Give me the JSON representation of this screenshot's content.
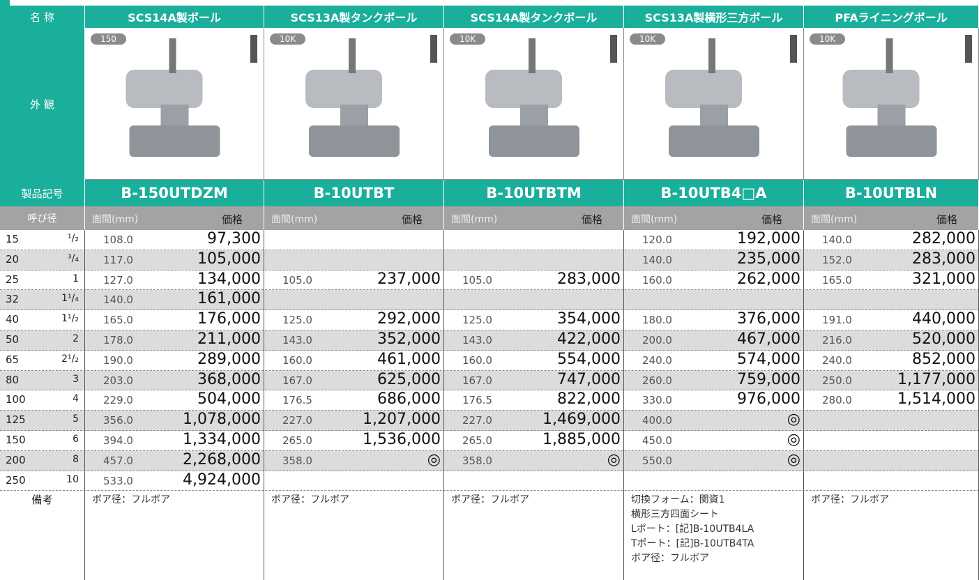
{
  "header": {
    "label": "名 称",
    "products": [
      "SCS14A製ボール",
      "SCS13A製タンクボール",
      "SCS14A製タンクボール",
      "SCS13A製横形三方ボール",
      "PFAライニングボール"
    ]
  },
  "appearance": {
    "label": "外 観",
    "badges": [
      "150",
      "10K",
      "10K",
      "10K",
      "10K"
    ]
  },
  "codes": {
    "label": "製品記号",
    "values": [
      "B-150UTDZM",
      "B-10UTBT",
      "B-10UTBTM",
      "B-10UTB4□A",
      "B-10UTBLN"
    ]
  },
  "subheader": {
    "label": "呼び径",
    "length": "面間(mm)",
    "price": "価格"
  },
  "rows": [
    {
      "size": "15",
      "inch": "¹/₂",
      "cells": [
        [
          "108.0",
          "97,300"
        ],
        null,
        null,
        [
          "120.0",
          "192,000"
        ],
        [
          "140.0",
          "282,000"
        ]
      ]
    },
    {
      "size": "20",
      "inch": "³/₄",
      "cells": [
        [
          "117.0",
          "105,000"
        ],
        null,
        null,
        [
          "140.0",
          "235,000"
        ],
        [
          "152.0",
          "283,000"
        ]
      ]
    },
    {
      "size": "25",
      "inch": "1",
      "cells": [
        [
          "127.0",
          "134,000"
        ],
        [
          "105.0",
          "237,000"
        ],
        [
          "105.0",
          "283,000"
        ],
        [
          "160.0",
          "262,000"
        ],
        [
          "165.0",
          "321,000"
        ]
      ]
    },
    {
      "size": "32",
      "inch": "1¹/₄",
      "cells": [
        [
          "140.0",
          "161,000"
        ],
        null,
        null,
        null,
        null
      ]
    },
    {
      "size": "40",
      "inch": "1¹/₂",
      "cells": [
        [
          "165.0",
          "176,000"
        ],
        [
          "125.0",
          "292,000"
        ],
        [
          "125.0",
          "354,000"
        ],
        [
          "180.0",
          "376,000"
        ],
        [
          "191.0",
          "440,000"
        ]
      ]
    },
    {
      "size": "50",
      "inch": "2",
      "cells": [
        [
          "178.0",
          "211,000"
        ],
        [
          "143.0",
          "352,000"
        ],
        [
          "143.0",
          "422,000"
        ],
        [
          "200.0",
          "467,000"
        ],
        [
          "216.0",
          "520,000"
        ]
      ]
    },
    {
      "size": "65",
      "inch": "2¹/₂",
      "cells": [
        [
          "190.0",
          "289,000"
        ],
        [
          "160.0",
          "461,000"
        ],
        [
          "160.0",
          "554,000"
        ],
        [
          "240.0",
          "574,000"
        ],
        [
          "240.0",
          "852,000"
        ]
      ]
    },
    {
      "size": "80",
      "inch": "3",
      "cells": [
        [
          "203.0",
          "368,000"
        ],
        [
          "167.0",
          "625,000"
        ],
        [
          "167.0",
          "747,000"
        ],
        [
          "260.0",
          "759,000"
        ],
        [
          "250.0",
          "1,177,000"
        ]
      ]
    },
    {
      "size": "100",
      "inch": "4",
      "cells": [
        [
          "229.0",
          "504,000"
        ],
        [
          "176.5",
          "686,000"
        ],
        [
          "176.5",
          "822,000"
        ],
        [
          "330.0",
          "976,000"
        ],
        [
          "280.0",
          "1,514,000"
        ]
      ]
    },
    {
      "size": "125",
      "inch": "5",
      "cells": [
        [
          "356.0",
          "1,078,000"
        ],
        [
          "227.0",
          "1,207,000"
        ],
        [
          "227.0",
          "1,469,000"
        ],
        [
          "400.0",
          "◎"
        ],
        null
      ]
    },
    {
      "size": "150",
      "inch": "6",
      "cells": [
        [
          "394.0",
          "1,334,000"
        ],
        [
          "265.0",
          "1,536,000"
        ],
        [
          "265.0",
          "1,885,000"
        ],
        [
          "450.0",
          "◎"
        ],
        null
      ]
    },
    {
      "size": "200",
      "inch": "8",
      "cells": [
        [
          "457.0",
          "2,268,000"
        ],
        [
          "358.0",
          "◎"
        ],
        [
          "358.0",
          "◎"
        ],
        [
          "550.0",
          "◎"
        ],
        null
      ]
    },
    {
      "size": "250",
      "inch": "10",
      "cells": [
        [
          "533.0",
          "4,924,000"
        ],
        null,
        null,
        null,
        null
      ]
    }
  ],
  "remarks": {
    "label": "備考",
    "values": [
      [
        "ボア径：フルボア"
      ],
      [
        "ボア径：フルボア"
      ],
      [
        "ボア径：フルボア"
      ],
      [
        "切換フォーム：関資1",
        "横形三方四面シート",
        "Lポート：[記]B-10UTB4LA",
        "Tポート：[記]B-10UTB4TA",
        "ボア径：フルボア"
      ],
      [
        "ボア径：フルボア"
      ]
    ]
  }
}
